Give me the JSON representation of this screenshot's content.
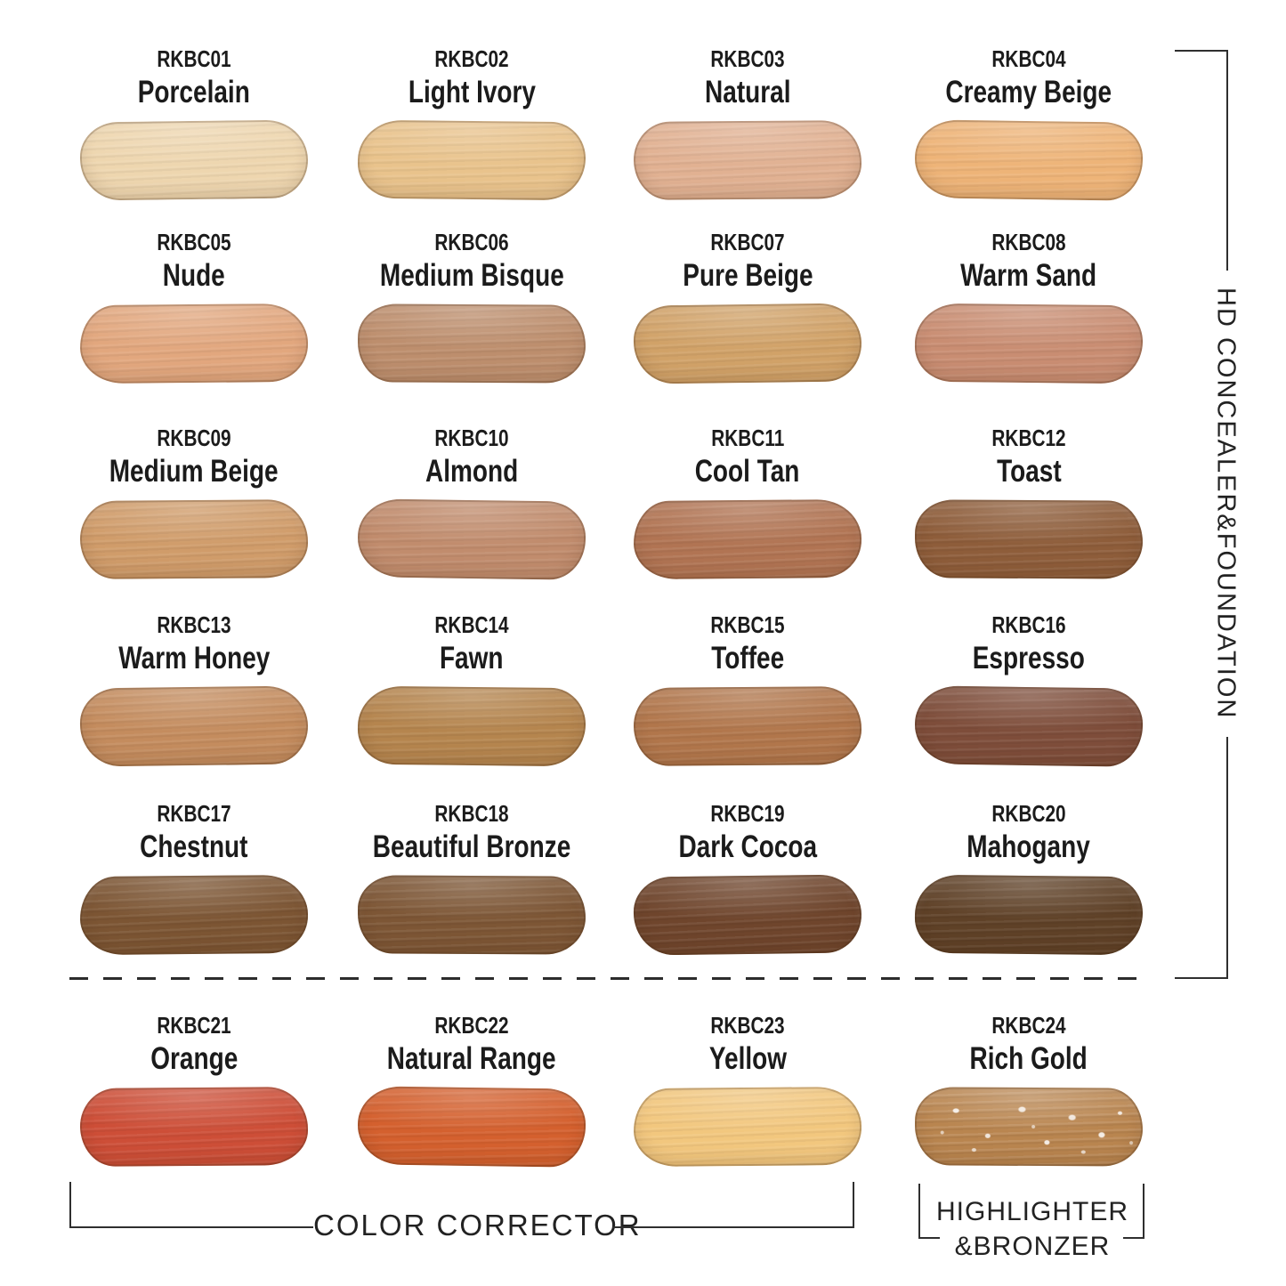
{
  "groups": {
    "right_vertical_label": "HD CONCEALER&FOUNDATION",
    "bottom_left_label": "COLOR CORRECTOR",
    "bottom_right_label_line1": "HIGHLIGHTER",
    "bottom_right_label_line2": "&BRONZER"
  },
  "colors": {
    "text": "#1b1b1b",
    "line": "#2f2f2f",
    "background": "#ffffff"
  },
  "swatches": [
    {
      "code": "RKBC01",
      "name": "Porcelain",
      "color": "#eed6af"
    },
    {
      "code": "RKBC02",
      "name": "Light Ivory",
      "color": "#e9c38c"
    },
    {
      "code": "RKBC03",
      "name": "Natural",
      "color": "#e1b192"
    },
    {
      "code": "RKBC04",
      "name": "Creamy Beige",
      "color": "#eeb478"
    },
    {
      "code": "RKBC05",
      "name": "Nude",
      "color": "#e2a77e"
    },
    {
      "code": "RKBC06",
      "name": "Medium Bisque",
      "color": "#bd8e6d"
    },
    {
      "code": "RKBC07",
      "name": "Pure Beige",
      "color": "#d1a268"
    },
    {
      "code": "RKBC08",
      "name": "Warm Sand",
      "color": "#c98d72"
    },
    {
      "code": "RKBC09",
      "name": "Medium Beige",
      "color": "#d09c6a"
    },
    {
      "code": "RKBC10",
      "name": "Almond",
      "color": "#c18c6d"
    },
    {
      "code": "RKBC11",
      "name": "Cool Tan",
      "color": "#b17453"
    },
    {
      "code": "RKBC12",
      "name": "Toast",
      "color": "#8e5d3a"
    },
    {
      "code": "RKBC13",
      "name": "Warm Honey",
      "color": "#c48c5e"
    },
    {
      "code": "RKBC14",
      "name": "Fawn",
      "color": "#b5854e"
    },
    {
      "code": "RKBC15",
      "name": "Toffee",
      "color": "#b1764b"
    },
    {
      "code": "RKBC16",
      "name": "Espresso",
      "color": "#7e4d3a"
    },
    {
      "code": "RKBC17",
      "name": "Chestnut",
      "color": "#7c5533"
    },
    {
      "code": "RKBC18",
      "name": "Beautiful Bronze",
      "color": "#7d5635"
    },
    {
      "code": "RKBC19",
      "name": "Dark Cocoa",
      "color": "#6f452c"
    },
    {
      "code": "RKBC20",
      "name": "Mahogany",
      "color": "#5f4127"
    },
    {
      "code": "RKBC21",
      "name": "Orange",
      "color": "#cd4e37"
    },
    {
      "code": "RKBC22",
      "name": "Natural Range",
      "color": "#d4602e"
    },
    {
      "code": "RKBC23",
      "name": "Yellow",
      "color": "#f2c77e"
    },
    {
      "code": "RKBC24",
      "name": "Rich Gold",
      "color": "#b9854f",
      "sparkle": true
    }
  ]
}
